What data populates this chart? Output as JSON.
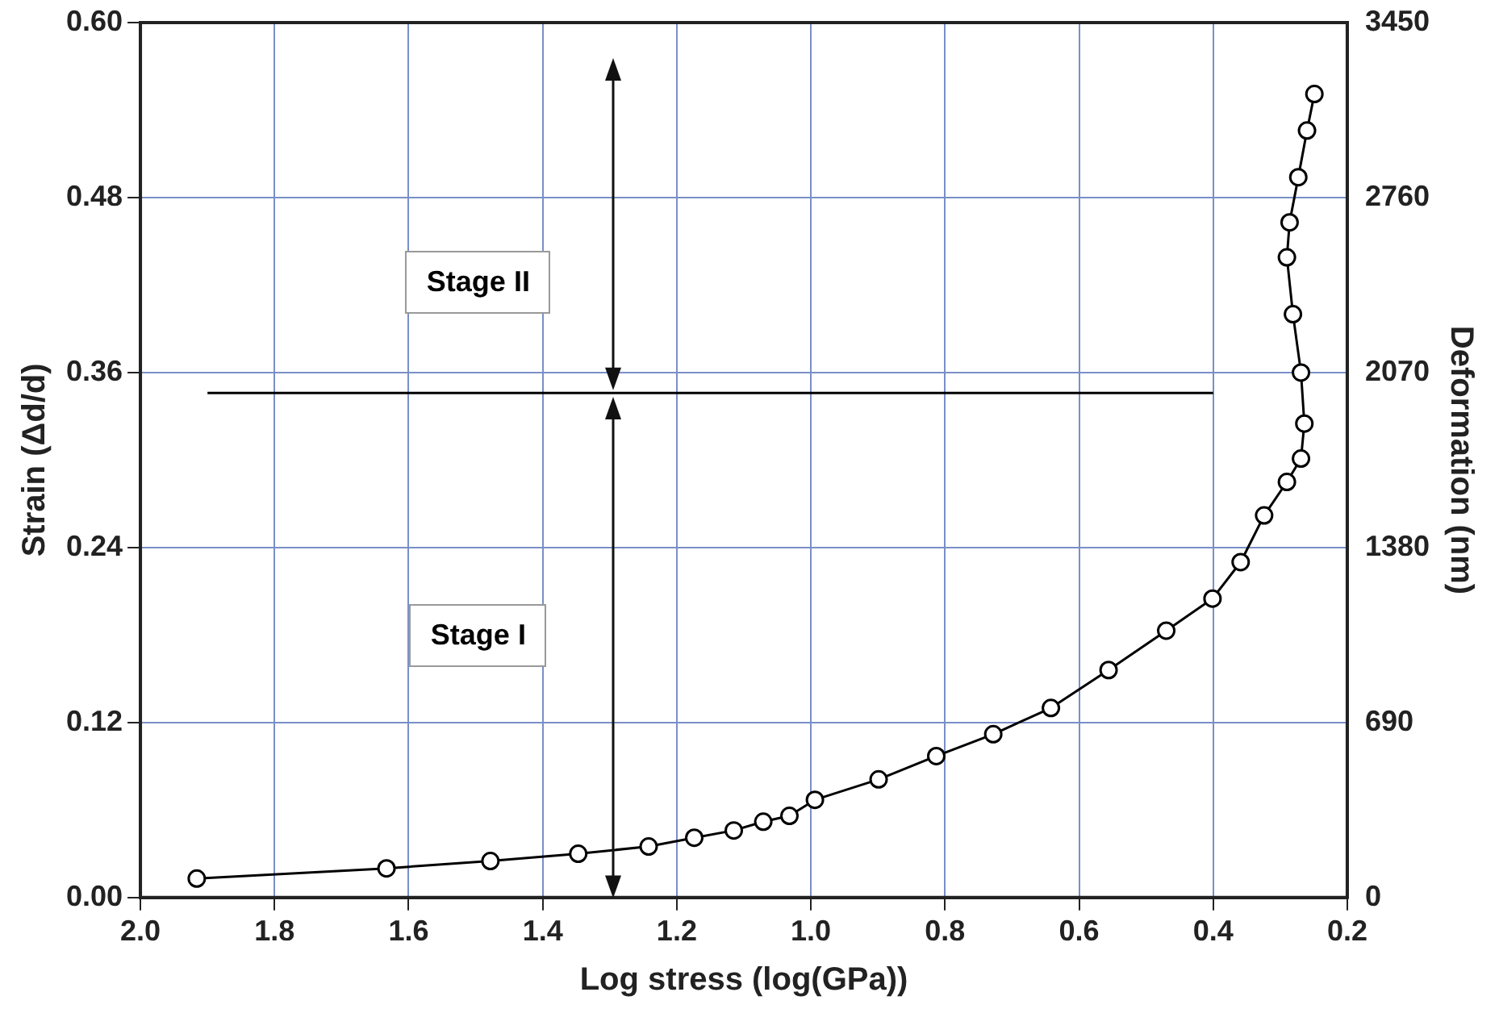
{
  "chart_data": {
    "type": "line",
    "xlabel": "Log stress (log(GPa))",
    "ylabel": "Strain (Δd/d)",
    "y2label": "Deformation (nm)",
    "xlim": [
      2.0,
      0.2
    ],
    "xticks": [
      {
        "value": 2,
        "label": "2.0"
      },
      1.8,
      1.6,
      1.4,
      1.2,
      {
        "value": 1,
        "label": "1.0"
      },
      0.8,
      0.6,
      0.4,
      0.2
    ],
    "ylim": [
      0,
      0.6
    ],
    "yticks": [
      {
        "value": 0,
        "label": "0.00"
      },
      0.12,
      0.24,
      0.36,
      0.48,
      {
        "value": 0.6,
        "label": "0.60"
      }
    ],
    "y2lim": [
      0,
      3450
    ],
    "y2ticks": [
      0,
      690,
      1380,
      2070,
      2760,
      3450
    ],
    "grid": true,
    "legend": false,
    "marker": "circle",
    "annotations": [
      "Stage II",
      "Stage I"
    ],
    "series": [
      {
        "color": "#000000",
        "x": [
          1.916,
          1.633,
          1.478,
          1.347,
          1.242,
          1.174,
          1.115,
          1.071,
          1.032,
          0.994,
          0.899,
          0.813,
          0.728,
          0.642,
          0.556,
          0.47,
          0.401,
          0.359,
          0.324,
          0.29,
          0.269,
          0.264,
          0.269,
          0.281,
          0.29,
          0.286,
          0.273,
          0.26,
          0.249
        ],
        "values": [
          0.013,
          0.02,
          0.025,
          0.03,
          0.035,
          0.041,
          0.046,
          0.052,
          0.056,
          0.067,
          0.081,
          0.097,
          0.112,
          0.13,
          0.156,
          0.183,
          0.205,
          0.23,
          0.262,
          0.285,
          0.301,
          0.325,
          0.36,
          0.4,
          0.439,
          0.463,
          0.494,
          0.526,
          0.551
        ]
      },
      {
        "color": "#000000",
        "marker": "none",
        "x": [
          1.9,
          0.4
        ],
        "values": [
          0.346,
          0.346
        ]
      }
    ]
  }
}
